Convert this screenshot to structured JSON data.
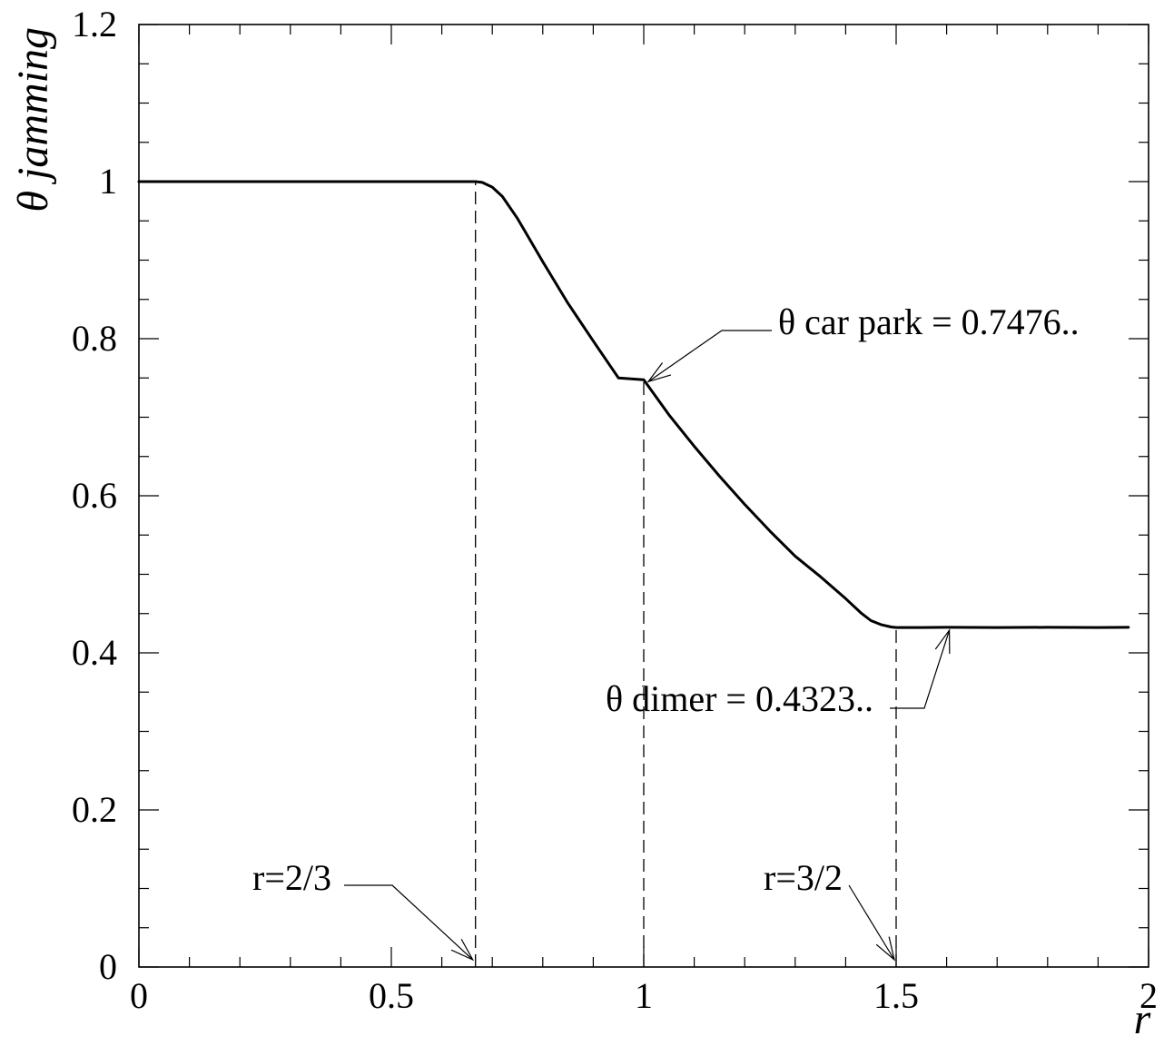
{
  "chart_data": {
    "type": "line",
    "title": "",
    "xlabel": "r",
    "ylabel": "θ jamming",
    "xlim": [
      0,
      2
    ],
    "ylim": [
      0,
      1.2
    ],
    "x_ticks": [
      {
        "value": 0,
        "label": "0"
      },
      {
        "value": 0.5,
        "label": "0.5"
      },
      {
        "value": 1,
        "label": "1"
      },
      {
        "value": 1.5,
        "label": "1.5"
      },
      {
        "value": 2,
        "label": "2"
      }
    ],
    "y_ticks": [
      {
        "value": 0,
        "label": "0"
      },
      {
        "value": 0.2,
        "label": "0.2"
      },
      {
        "value": 0.4,
        "label": "0.4"
      },
      {
        "value": 0.6,
        "label": "0.6"
      },
      {
        "value": 0.8,
        "label": "0.8"
      },
      {
        "value": 1,
        "label": "1"
      },
      {
        "value": 1.2,
        "label": "1.2"
      }
    ],
    "grid": false,
    "series": [
      {
        "x": [
          0.0,
          0.667,
          0.68,
          0.7,
          0.72,
          0.75,
          0.8,
          0.85,
          0.9,
          0.95,
          1.0,
          1.05,
          1.1,
          1.15,
          1.2,
          1.25,
          1.3,
          1.35,
          1.4,
          1.43,
          1.45,
          1.47,
          1.49,
          1.5,
          1.55,
          1.6,
          1.7,
          1.8,
          1.9,
          1.96
        ],
        "y": [
          1.0,
          1.0,
          0.999,
          0.993,
          0.981,
          0.953,
          0.898,
          0.845,
          0.797,
          0.75,
          0.7476,
          0.703,
          0.663,
          0.625,
          0.589,
          0.555,
          0.523,
          0.497,
          0.469,
          0.451,
          0.441,
          0.436,
          0.433,
          0.4323,
          0.4323,
          0.4325,
          0.4323,
          0.4325,
          0.4323,
          0.4325
        ]
      }
    ],
    "reference_lines": [
      {
        "x": 0.6667,
        "y_top": 1.0
      },
      {
        "x": 1.0,
        "y_top": 0.7476
      },
      {
        "x": 1.5,
        "y_top": 0.4323
      }
    ],
    "annotations": [
      {
        "text": "θ car park = 0.7476..",
        "point": [
          1.0,
          0.7476
        ]
      },
      {
        "text": "θ dimer = 0.4323..",
        "point": [
          1.6,
          0.4323
        ]
      },
      {
        "text": "r=2/3",
        "point": [
          0.6667,
          0.0
        ]
      },
      {
        "text": "r=3/2",
        "point": [
          1.5,
          0.0
        ]
      }
    ]
  }
}
